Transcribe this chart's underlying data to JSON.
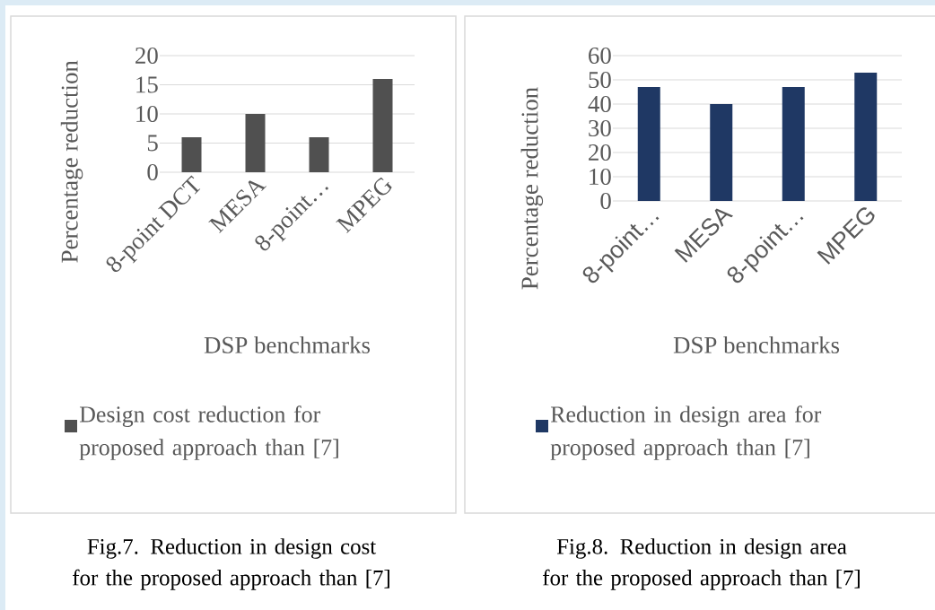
{
  "chart_data": [
    {
      "type": "bar",
      "xlabel": "DSP benchmarks",
      "ylabel": "Percentage reduction",
      "categories": [
        "8-point DCT",
        "MESA",
        "8-point…",
        "MPEG"
      ],
      "series": [
        {
          "name": "Design cost reduction for proposed approach than [7]",
          "color": "#505050",
          "values": [
            6,
            10,
            6,
            16
          ]
        }
      ],
      "ylim": [
        0,
        20
      ],
      "yticks": [
        0,
        5,
        10,
        15,
        20
      ],
      "grid": "y",
      "legend": "bottom",
      "annotations": [
        "Fig.7.  Reduction in design cost for the proposed approach than [7]"
      ]
    },
    {
      "type": "bar",
      "xlabel": "DSP benchmarks",
      "ylabel": "Percentage reduction",
      "categories": [
        "8-point…",
        "MESA",
        "8-point…",
        "MPEG"
      ],
      "series": [
        {
          "name": "Reduction in design area for proposed approach than [7]",
          "color": "#1f3864",
          "values": [
            47,
            40,
            47,
            53
          ]
        }
      ],
      "ylim": [
        0,
        60
      ],
      "yticks": [
        0,
        10,
        20,
        30,
        40,
        50,
        60
      ],
      "grid": "y",
      "legend": "bottom",
      "annotations": [
        "Fig.8.  Reduction in design area for the proposed approach than [7]"
      ]
    }
  ]
}
